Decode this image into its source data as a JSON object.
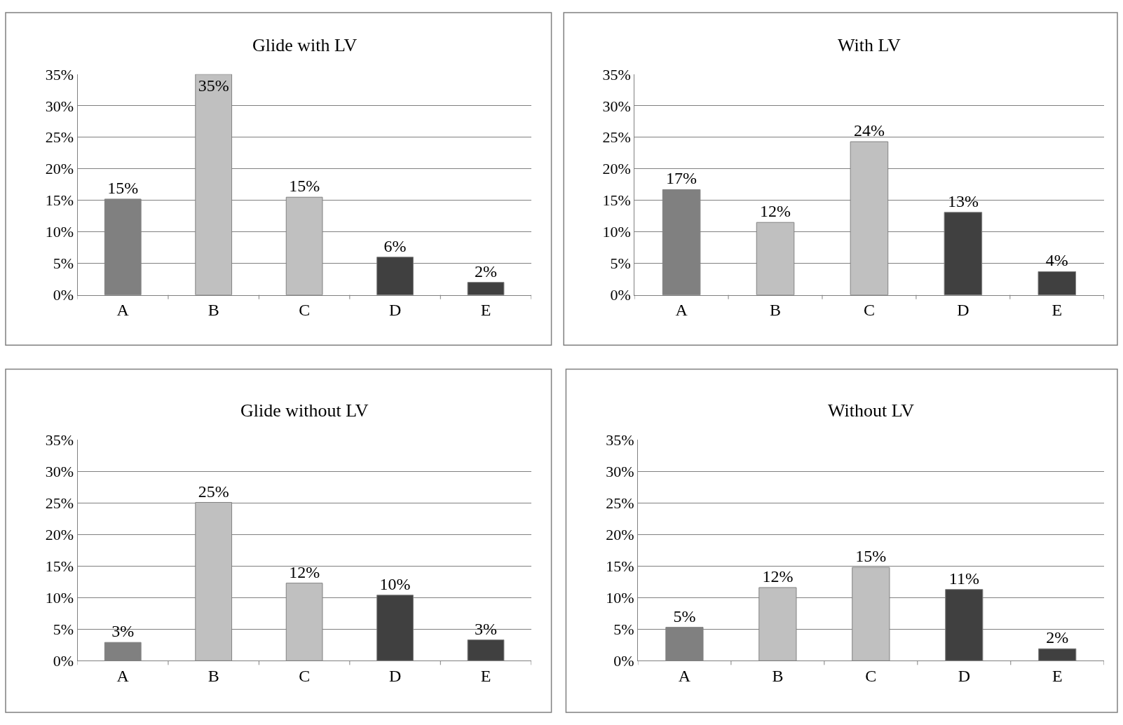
{
  "chart_data": [
    {
      "type": "bar",
      "title": "Glide with LV",
      "categories": [
        "A",
        "B",
        "C",
        "D",
        "E"
      ],
      "values": [
        15.2,
        35,
        15.5,
        6.0,
        2.0
      ],
      "colors": [
        "#808080",
        "#c0c0c0",
        "#c0c0c0",
        "#404040",
        "#404040"
      ],
      "value_labels": [
        "15%",
        "35%",
        "15%",
        "6%",
        "2%"
      ],
      "ylim": [
        0,
        35
      ],
      "yticks": [
        {
          "value": 0,
          "label": "0%"
        },
        {
          "value": 5,
          "label": "5%"
        },
        {
          "value": 10,
          "label": "10%"
        },
        {
          "value": 15,
          "label": "15%"
        },
        {
          "value": 20,
          "label": "20%"
        },
        {
          "value": 25,
          "label": "25%"
        },
        {
          "value": 30,
          "label": "30%"
        },
        {
          "value": 35,
          "label": "35%"
        }
      ],
      "grid": "y"
    },
    {
      "type": "bar",
      "title": "With LV",
      "categories": [
        "A",
        "B",
        "C",
        "D",
        "E"
      ],
      "values": [
        16.7,
        11.5,
        24.3,
        13.1,
        3.7
      ],
      "colors": [
        "#808080",
        "#c0c0c0",
        "#c0c0c0",
        "#404040",
        "#404040"
      ],
      "value_labels": [
        "17%",
        "12%",
        "24%",
        "13%",
        "4%"
      ],
      "ylim": [
        0,
        35
      ],
      "yticks": [
        {
          "value": 0,
          "label": "0%"
        },
        {
          "value": 5,
          "label": "5%"
        },
        {
          "value": 10,
          "label": "10%"
        },
        {
          "value": 15,
          "label": "15%"
        },
        {
          "value": 20,
          "label": "20%"
        },
        {
          "value": 25,
          "label": "25%"
        },
        {
          "value": 30,
          "label": "30%"
        },
        {
          "value": 35,
          "label": "35%"
        }
      ],
      "grid": "y"
    },
    {
      "type": "bar",
      "title": "Glide without LV",
      "categories": [
        "A",
        "B",
        "C",
        "D",
        "E"
      ],
      "values": [
        2.9,
        25.1,
        12.3,
        10.4,
        3.3
      ],
      "colors": [
        "#808080",
        "#c0c0c0",
        "#c0c0c0",
        "#404040",
        "#404040"
      ],
      "value_labels": [
        "3%",
        "25%",
        "12%",
        "10%",
        "3%"
      ],
      "ylim": [
        0,
        35
      ],
      "yticks": [
        {
          "value": 0,
          "label": "0%"
        },
        {
          "value": 5,
          "label": "5%"
        },
        {
          "value": 10,
          "label": "10%"
        },
        {
          "value": 15,
          "label": "15%"
        },
        {
          "value": 20,
          "label": "20%"
        },
        {
          "value": 25,
          "label": "25%"
        },
        {
          "value": 30,
          "label": "30%"
        },
        {
          "value": 35,
          "label": "35%"
        }
      ],
      "grid": "y"
    },
    {
      "type": "bar",
      "title": "Without LV",
      "categories": [
        "A",
        "B",
        "C",
        "D",
        "E"
      ],
      "values": [
        5.3,
        11.6,
        14.8,
        11.3,
        1.9
      ],
      "colors": [
        "#808080",
        "#c0c0c0",
        "#c0c0c0",
        "#404040",
        "#404040"
      ],
      "value_labels": [
        "5%",
        "12%",
        "15%",
        "11%",
        "2%"
      ],
      "ylim": [
        0,
        35
      ],
      "yticks": [
        {
          "value": 0,
          "label": "0%"
        },
        {
          "value": 5,
          "label": "5%"
        },
        {
          "value": 10,
          "label": "10%"
        },
        {
          "value": 15,
          "label": "15%"
        },
        {
          "value": 20,
          "label": "20%"
        },
        {
          "value": 25,
          "label": "25%"
        },
        {
          "value": 30,
          "label": "30%"
        },
        {
          "value": 35,
          "label": "35%"
        }
      ],
      "grid": "y"
    }
  ]
}
